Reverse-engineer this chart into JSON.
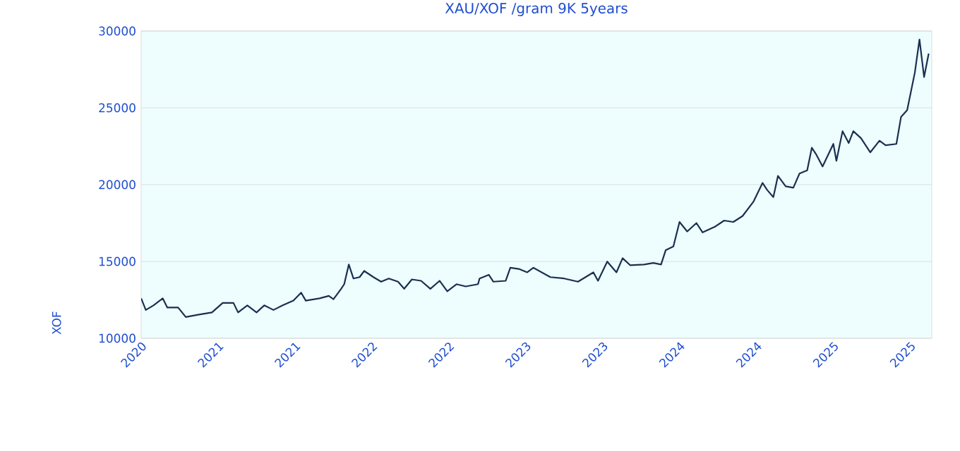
{
  "chart_data": {
    "type": "line",
    "title": "XAU/XOF /gram 9K 5years",
    "ylabel": "XOF",
    "xlim": [
      2020.3,
      2025.44
    ],
    "ylim": [
      10000,
      30000
    ],
    "yticks": [
      10000,
      15000,
      20000,
      25000,
      30000
    ],
    "xticks": [
      {
        "value": 2020.3,
        "label": "2020"
      },
      {
        "value": 2020.8,
        "label": "2021"
      },
      {
        "value": 2021.3,
        "label": "2021"
      },
      {
        "value": 2021.8,
        "label": "2022"
      },
      {
        "value": 2022.3,
        "label": "2022"
      },
      {
        "value": 2022.8,
        "label": "2023"
      },
      {
        "value": 2023.3,
        "label": "2023"
      },
      {
        "value": 2023.8,
        "label": "2024"
      },
      {
        "value": 2024.3,
        "label": "2024"
      },
      {
        "value": 2024.8,
        "label": "2025"
      },
      {
        "value": 2025.3,
        "label": "2025"
      }
    ],
    "grid": "y",
    "marker": "none",
    "line_style": "solid",
    "series": [
      {
        "color": "#1b2f50",
        "x": [
          2020.3,
          2020.33,
          2020.38,
          2020.44,
          2020.47,
          2020.54,
          2020.59,
          2020.67,
          2020.76,
          2020.83,
          2020.9,
          2020.93,
          2020.99,
          2021.05,
          2021.1,
          2021.16,
          2021.22,
          2021.29,
          2021.34,
          2021.37,
          2021.46,
          2021.52,
          2021.55,
          2021.6,
          2021.62,
          2021.65,
          2021.68,
          2021.72,
          2021.75,
          2021.81,
          2021.86,
          2021.91,
          2021.97,
          2022.01,
          2022.06,
          2022.12,
          2022.18,
          2022.24,
          2022.29,
          2022.35,
          2022.41,
          2022.49,
          2022.5,
          2022.56,
          2022.59,
          2022.67,
          2022.7,
          2022.76,
          2022.81,
          2022.85,
          2022.96,
          2023.05,
          2023.14,
          2023.24,
          2023.27,
          2023.33,
          2023.39,
          2023.43,
          2023.48,
          2023.57,
          2023.63,
          2023.68,
          2023.71,
          2023.76,
          2023.8,
          2023.85,
          2023.91,
          2023.95,
          2024.03,
          2024.09,
          2024.15,
          2024.21,
          2024.28,
          2024.34,
          2024.37,
          2024.41,
          2024.44,
          2024.49,
          2024.54,
          2024.58,
          2024.63,
          2024.66,
          2024.69,
          2024.73,
          2024.8,
          2024.82,
          2024.86,
          2024.9,
          2024.93,
          2024.98,
          2025.04,
          2025.1,
          2025.14,
          2025.21,
          2025.24,
          2025.28,
          2025.33,
          2025.36,
          2025.39,
          2025.42
        ],
        "values": [
          12600,
          11840,
          12140,
          12600,
          12000,
          12000,
          11380,
          11530,
          11680,
          12300,
          12300,
          11680,
          12140,
          11680,
          12140,
          11840,
          12140,
          12450,
          12970,
          12450,
          12600,
          12760,
          12540,
          13220,
          13520,
          14800,
          13890,
          13980,
          14380,
          13980,
          13680,
          13890,
          13680,
          13220,
          13830,
          13740,
          13220,
          13740,
          13060,
          13520,
          13370,
          13520,
          13890,
          14130,
          13680,
          13740,
          14590,
          14500,
          14290,
          14590,
          13980,
          13890,
          13680,
          14290,
          13740,
          14990,
          14290,
          15210,
          14750,
          14800,
          14900,
          14800,
          15730,
          15970,
          17570,
          16950,
          17500,
          16890,
          17260,
          17660,
          17570,
          17960,
          18880,
          20110,
          19650,
          19190,
          20570,
          19890,
          19800,
          20720,
          20930,
          22400,
          21940,
          21180,
          22650,
          21550,
          23480,
          22710,
          23480,
          23020,
          22100,
          22860,
          22560,
          22650,
          24400,
          24850,
          27300,
          29450,
          27000,
          28530
        ]
      }
    ]
  }
}
